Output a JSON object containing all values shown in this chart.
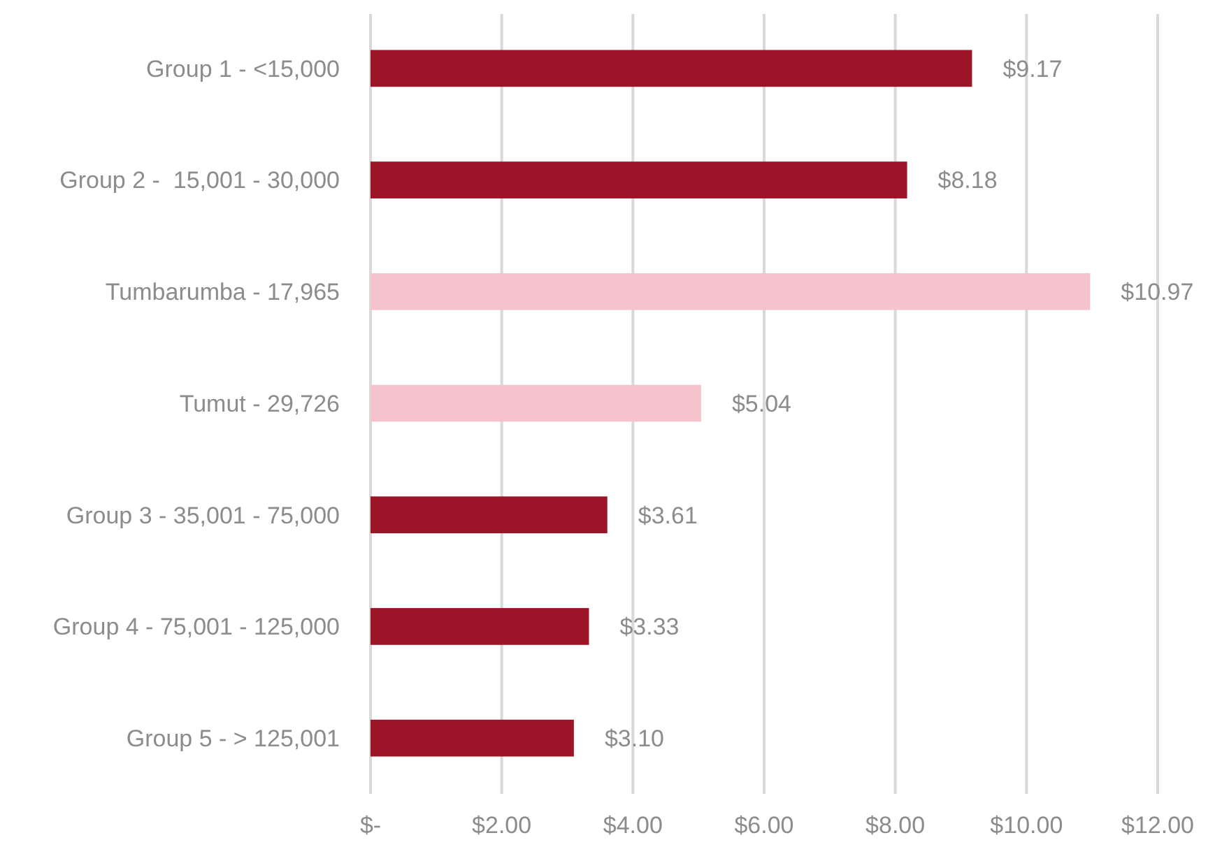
{
  "chart_data": {
    "type": "bar",
    "orientation": "horizontal",
    "categories": [
      "Group 1 - <15,000",
      "Group 2 -  15,001 - 30,000",
      "Tumbarumba - 17,965",
      "Tumut - 29,726",
      "Group 3 - 35,001 - 75,000",
      "Group 4 - 75,001 - 125,000",
      "Group 5 - > 125,001"
    ],
    "values": [
      9.17,
      8.18,
      10.97,
      5.04,
      3.61,
      3.33,
      3.1
    ],
    "colors": [
      "#9b1428",
      "#9b1428",
      "#f5c3cc",
      "#f5c3cc",
      "#9b1428",
      "#9b1428",
      "#9b1428"
    ],
    "value_labels": [
      "$9.17",
      "$8.18",
      "$10.97",
      "$5.04",
      "$3.61",
      "$3.33",
      "$3.10"
    ],
    "xlim": [
      0,
      12
    ],
    "xticks": [
      {
        "value": 0,
        "label": "$-"
      },
      {
        "value": 2,
        "label": "$2.00"
      },
      {
        "value": 4,
        "label": "$4.00"
      },
      {
        "value": 6,
        "label": "$6.00"
      },
      {
        "value": 8,
        "label": "$8.00"
      },
      {
        "value": 10,
        "label": "$10.00"
      },
      {
        "value": 12,
        "label": "$12.00"
      }
    ],
    "grid": "x"
  }
}
